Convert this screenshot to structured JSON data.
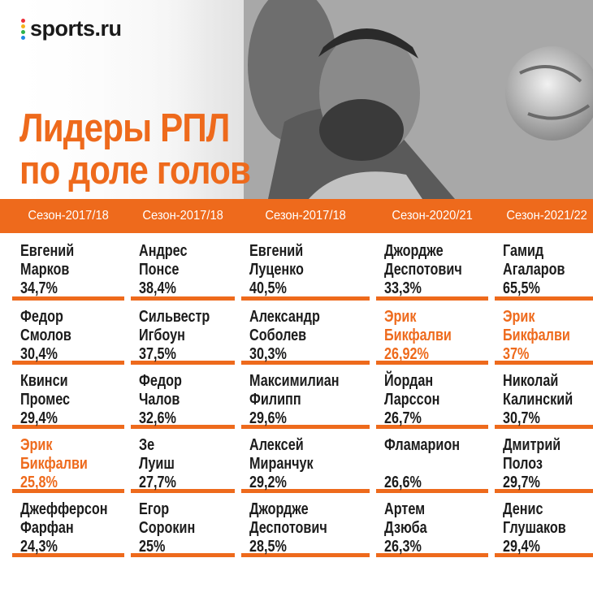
{
  "brand": {
    "name": "sports.ru",
    "dot_colors": [
      "#ee2e3a",
      "#f6b21b",
      "#2bb24c",
      "#1e88e5"
    ]
  },
  "title": {
    "line1": "Лидеры РПЛ",
    "line2": "по доле голов",
    "color": "#ee6a1c"
  },
  "accent_color": "#ee6a1c",
  "columns": [
    {
      "season": "Сезон-2017/18",
      "entries": [
        {
          "line1": "Евгений",
          "line2": "Марков",
          "pct": "34,7%",
          "highlight": false
        },
        {
          "line1": "Федор",
          "line2": "Смолов",
          "pct": "30,4%",
          "highlight": false
        },
        {
          "line1": "Квинси",
          "line2": "Промес",
          "pct": "29,4%",
          "highlight": false
        },
        {
          "line1": "Эрик",
          "line2": "Бикфалви",
          "pct": "25,8%",
          "highlight": true
        },
        {
          "line1": "Джефферсон",
          "line2": "Фарфан",
          "pct": "24,3%",
          "highlight": false
        }
      ]
    },
    {
      "season": "Сезон-2017/18",
      "entries": [
        {
          "line1": "Андрес",
          "line2": "Понсе",
          "pct": "38,4%",
          "highlight": false
        },
        {
          "line1": "Сильвестр",
          "line2": "Игбоун",
          "pct": "37,5%",
          "highlight": false
        },
        {
          "line1": "Федор",
          "line2": "Чалов",
          "pct": "32,6%",
          "highlight": false
        },
        {
          "line1": "Зе",
          "line2": "Луиш",
          "pct": "27,7%",
          "highlight": false
        },
        {
          "line1": "Егор",
          "line2": "Сорокин",
          "pct": "25%",
          "highlight": false
        }
      ]
    },
    {
      "season": "Сезон-2017/18",
      "entries": [
        {
          "line1": "Евгений",
          "line2": "Луценко",
          "pct": "40,5%",
          "highlight": false
        },
        {
          "line1": "Александр",
          "line2": "Соболев",
          "pct": "30,3%",
          "highlight": false
        },
        {
          "line1": "Максимилиан",
          "line2": "Филипп",
          "pct": "29,6%",
          "highlight": false
        },
        {
          "line1": "Алексей",
          "line2": "Миранчук",
          "pct": "29,2%",
          "highlight": false
        },
        {
          "line1": "Джордже",
          "line2": "Деспотович",
          "pct": "28,5%",
          "highlight": false
        }
      ]
    },
    {
      "season": "Сезон-2020/21",
      "entries": [
        {
          "line1": "Джордже",
          "line2": "Деспотович",
          "pct": "33,3%",
          "highlight": false
        },
        {
          "line1": "Эрик",
          "line2": "Бикфалви",
          "pct": "26,92%",
          "highlight": true
        },
        {
          "line1": "Йордан",
          "line2": "Ларссон",
          "pct": "26,7%",
          "highlight": false
        },
        {
          "line1": "Фламарион",
          "line2": "",
          "pct": "26,6%",
          "highlight": false
        },
        {
          "line1": "Артем",
          "line2": "Дзюба",
          "pct": "26,3%",
          "highlight": false
        }
      ]
    },
    {
      "season": "Сезон-2021/22",
      "entries": [
        {
          "line1": "Гамид",
          "line2": "Агаларов",
          "pct": "65,5%",
          "highlight": false
        },
        {
          "line1": "Эрик",
          "line2": "Бикфалви",
          "pct": "37%",
          "highlight": true
        },
        {
          "line1": "Николай",
          "line2": "Калинский",
          "pct": "30,7%",
          "highlight": false
        },
        {
          "line1": "Дмитрий",
          "line2": "Полоз",
          "pct": "29,7%",
          "highlight": false
        },
        {
          "line1": "Денис",
          "line2": "Глушаков",
          "pct": "29,4%",
          "highlight": false
        }
      ]
    }
  ]
}
